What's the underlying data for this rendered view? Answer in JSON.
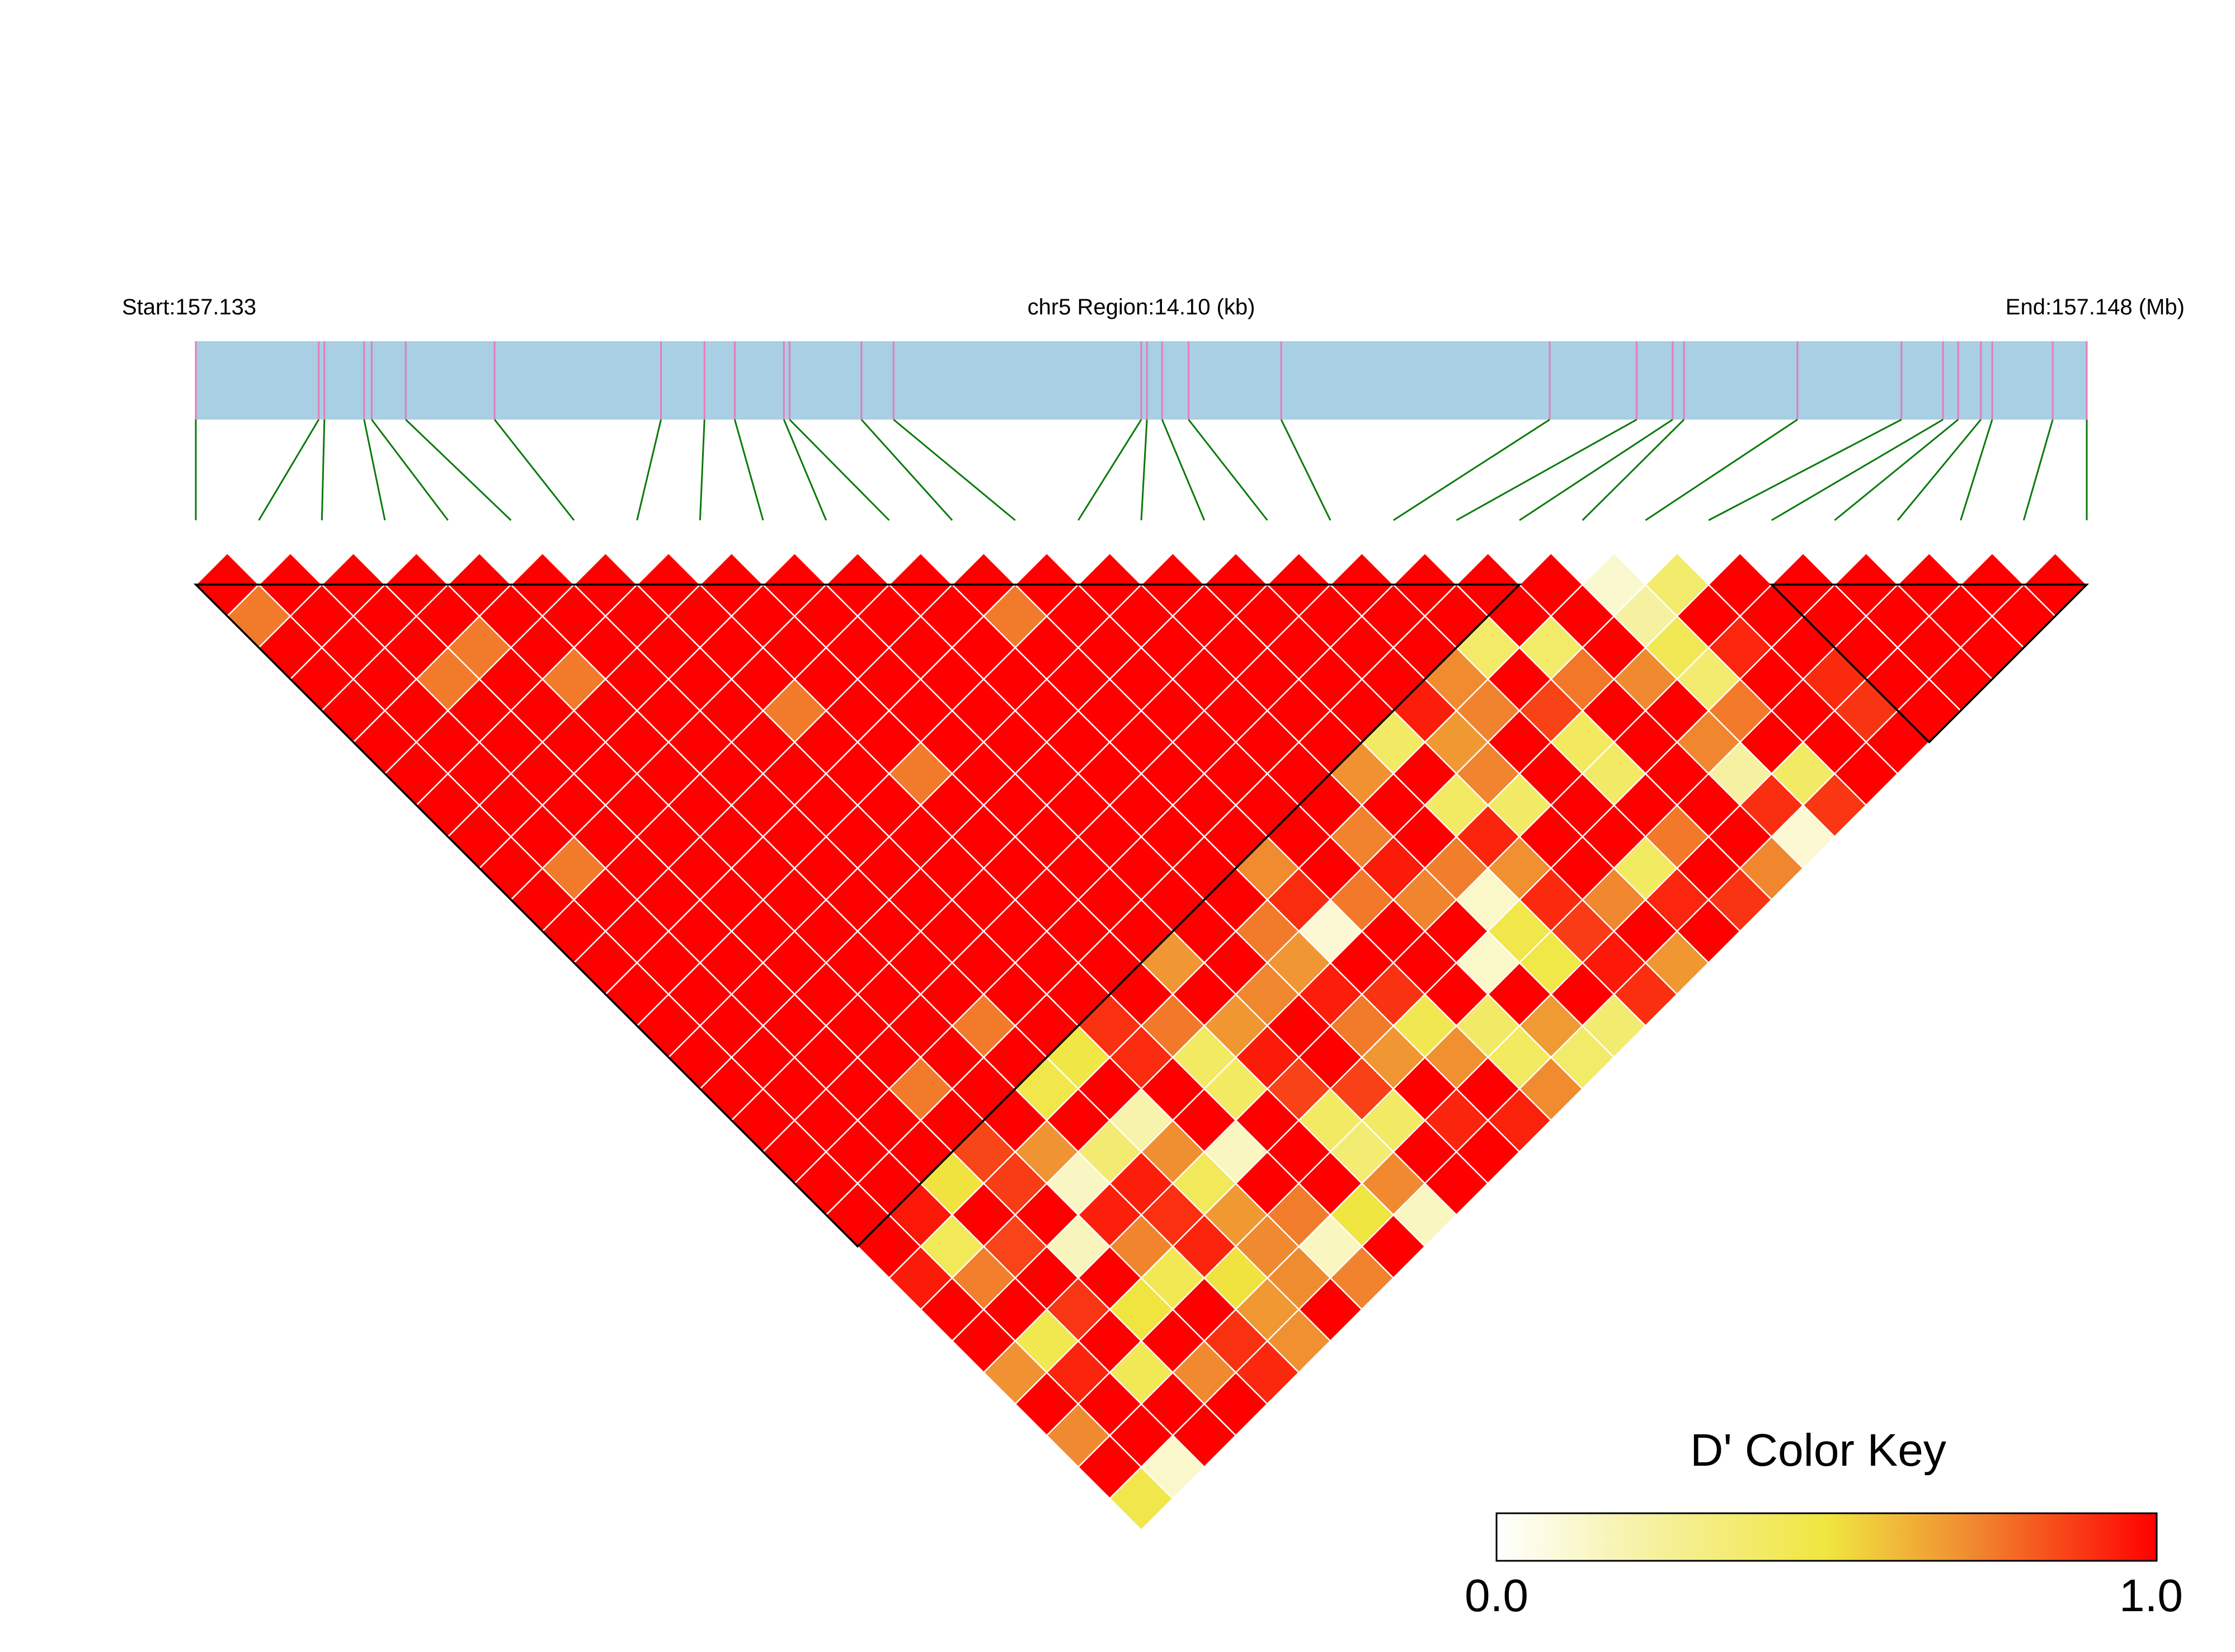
{
  "header": {
    "start_label": "Start:157.133",
    "region_label": "chr5 Region:14.10 (kb)",
    "end_label": "End:157.148 (Mb)"
  },
  "chart_data": {
    "type": "heatmap",
    "subtype": "linkage-disequilibrium-triangle",
    "title": "",
    "chromosome": "chr5",
    "region_start_mb": 157.133,
    "region_end_mb": 157.148,
    "region_size_kb": 14.1,
    "snp_count": 31,
    "snp_positions_normalized": [
      0.0,
      0.065,
      0.068,
      0.089,
      0.093,
      0.111,
      0.158,
      0.246,
      0.269,
      0.285,
      0.311,
      0.314,
      0.352,
      0.369,
      0.5,
      0.503,
      0.511,
      0.525,
      0.574,
      0.716,
      0.762,
      0.781,
      0.787,
      0.847,
      0.902,
      0.924,
      0.932,
      0.944,
      0.95,
      0.982,
      1.0
    ],
    "adjacent_dprime": [
      1.0,
      1.0,
      1.0,
      1.0,
      1.0,
      1.0,
      1.0,
      1.0,
      1.0,
      1.0,
      1.0,
      1.0,
      1.0,
      1.0,
      1.0,
      1.0,
      1.0,
      1.0,
      1.0,
      1.0,
      1.0,
      1.0,
      0.12,
      0.38,
      1.0,
      1.0,
      1.0,
      1.0,
      1.0,
      1.0
    ],
    "ld_blocks": [
      [
        0,
        21
      ],
      [
        25,
        30
      ]
    ],
    "colormap": {
      "label": "D' Color Key",
      "min": 0.0,
      "max": 1.0,
      "min_label": "0.0",
      "max_label": "1.0",
      "stops": [
        "#ffffff",
        "#f5f09a",
        "#f0e640",
        "#f08a30",
        "#ff0000"
      ]
    },
    "gene_track_color": "#a8cfe3",
    "snp_tick_color": "#e87ab8",
    "connector_color": "#0a7a0a"
  }
}
